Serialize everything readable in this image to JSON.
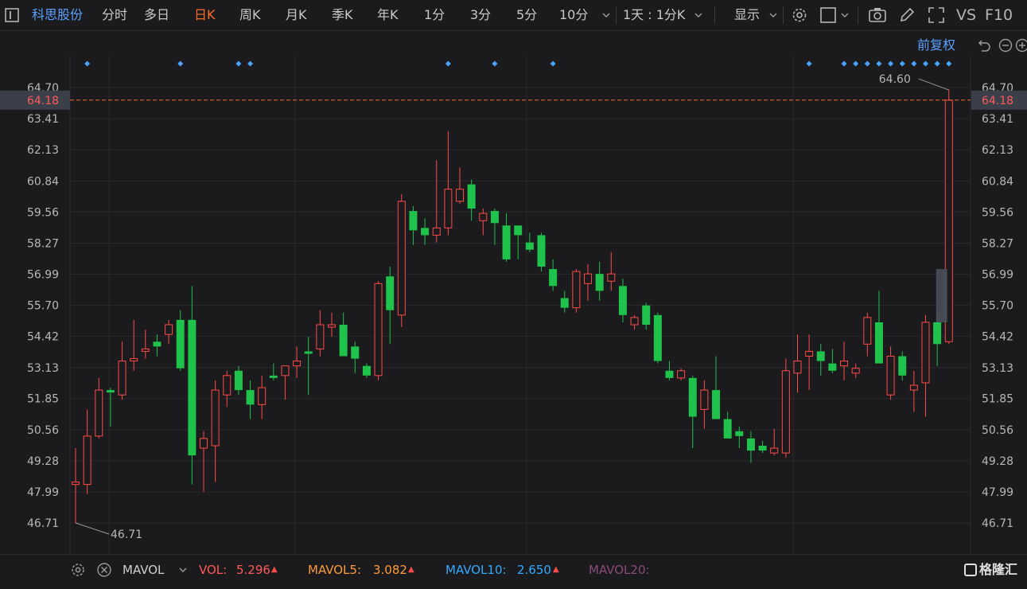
{
  "toolbar": {
    "stock_name": "科思股份",
    "tabs": [
      "分时",
      "多日",
      "日K",
      "周K",
      "月K",
      "季K",
      "年K",
      "1分",
      "3分",
      "5分",
      "10分"
    ],
    "active_tab": "日K",
    "interval_label": "1天 : 1分K",
    "display_label": "显示",
    "vs_label": "VS",
    "f10_label": "F10"
  },
  "subbar": {
    "adjust_label": "前复权"
  },
  "chart_data": {
    "type": "candlestick",
    "y_ticks": [
      "64.70",
      "63.41",
      "62.13",
      "60.84",
      "59.56",
      "58.27",
      "56.99",
      "55.70",
      "54.42",
      "53.13",
      "51.85",
      "50.56",
      "49.28",
      "47.99",
      "46.71"
    ],
    "ylim": [
      46.71,
      64.7
    ],
    "current_price": "64.18",
    "high_label": "64.60",
    "low_label": "46.71",
    "colors": {
      "up": "#ff4a4a",
      "down": "#1fc24a",
      "current_line": "#ff6a2a",
      "marker": "#4aa3ff"
    },
    "candles": [
      {
        "o": 48.3,
        "h": 49.8,
        "l": 46.71,
        "c": 48.4
      },
      {
        "o": 48.3,
        "h": 51.4,
        "l": 47.9,
        "c": 50.3
      },
      {
        "o": 50.3,
        "h": 52.7,
        "l": 50.2,
        "c": 52.2
      },
      {
        "o": 52.2,
        "h": 52.3,
        "l": 50.7,
        "c": 52.1
      },
      {
        "o": 52.0,
        "h": 54.2,
        "l": 51.8,
        "c": 53.4
      },
      {
        "o": 53.4,
        "h": 55.1,
        "l": 53.0,
        "c": 53.5
      },
      {
        "o": 53.8,
        "h": 54.7,
        "l": 53.5,
        "c": 53.9
      },
      {
        "o": 54.2,
        "h": 54.5,
        "l": 53.6,
        "c": 54.0
      },
      {
        "o": 54.5,
        "h": 55.1,
        "l": 54.1,
        "c": 54.9
      },
      {
        "o": 55.1,
        "h": 55.5,
        "l": 53.0,
        "c": 53.1
      },
      {
        "o": 55.1,
        "h": 56.5,
        "l": 48.3,
        "c": 49.5
      },
      {
        "o": 49.8,
        "h": 50.5,
        "l": 48.0,
        "c": 50.2
      },
      {
        "o": 49.9,
        "h": 52.6,
        "l": 48.4,
        "c": 52.2
      },
      {
        "o": 52.0,
        "h": 53.0,
        "l": 51.5,
        "c": 52.8
      },
      {
        "o": 53.0,
        "h": 53.2,
        "l": 52.0,
        "c": 52.2
      },
      {
        "o": 52.2,
        "h": 52.6,
        "l": 51.0,
        "c": 51.6
      },
      {
        "o": 51.6,
        "h": 52.8,
        "l": 51.0,
        "c": 52.3
      },
      {
        "o": 52.8,
        "h": 53.3,
        "l": 52.6,
        "c": 52.7
      },
      {
        "o": 52.8,
        "h": 53.2,
        "l": 51.8,
        "c": 53.2
      },
      {
        "o": 53.2,
        "h": 54.0,
        "l": 52.7,
        "c": 53.4
      },
      {
        "o": 53.8,
        "h": 54.4,
        "l": 52.0,
        "c": 53.7
      },
      {
        "o": 53.9,
        "h": 55.5,
        "l": 53.6,
        "c": 54.9
      },
      {
        "o": 54.8,
        "h": 55.4,
        "l": 54.4,
        "c": 54.9
      },
      {
        "o": 54.9,
        "h": 55.4,
        "l": 53.6,
        "c": 53.6
      },
      {
        "o": 54.0,
        "h": 54.2,
        "l": 52.9,
        "c": 53.5
      },
      {
        "o": 53.2,
        "h": 53.3,
        "l": 52.7,
        "c": 52.8
      },
      {
        "o": 52.8,
        "h": 56.7,
        "l": 52.6,
        "c": 56.6
      },
      {
        "o": 56.9,
        "h": 57.3,
        "l": 54.1,
        "c": 55.5
      },
      {
        "o": 55.3,
        "h": 60.3,
        "l": 54.8,
        "c": 60.0
      },
      {
        "o": 59.6,
        "h": 59.8,
        "l": 58.2,
        "c": 58.8
      },
      {
        "o": 58.9,
        "h": 59.3,
        "l": 58.2,
        "c": 58.6
      },
      {
        "o": 58.6,
        "h": 61.7,
        "l": 58.3,
        "c": 58.9
      },
      {
        "o": 58.9,
        "h": 62.9,
        "l": 58.6,
        "c": 60.5
      },
      {
        "o": 60.0,
        "h": 61.4,
        "l": 59.9,
        "c": 60.5
      },
      {
        "o": 60.7,
        "h": 60.9,
        "l": 59.2,
        "c": 59.7
      },
      {
        "o": 59.2,
        "h": 59.7,
        "l": 58.6,
        "c": 59.5
      },
      {
        "o": 59.6,
        "h": 59.7,
        "l": 58.2,
        "c": 59.1
      },
      {
        "o": 59.0,
        "h": 59.5,
        "l": 57.5,
        "c": 57.6
      },
      {
        "o": 59.0,
        "h": 59.0,
        "l": 57.6,
        "c": 58.6
      },
      {
        "o": 58.3,
        "h": 58.7,
        "l": 57.9,
        "c": 58.0
      },
      {
        "o": 58.6,
        "h": 58.7,
        "l": 57.1,
        "c": 57.3
      },
      {
        "o": 57.2,
        "h": 57.6,
        "l": 56.3,
        "c": 56.5
      },
      {
        "o": 56.0,
        "h": 56.3,
        "l": 55.4,
        "c": 55.6
      },
      {
        "o": 55.6,
        "h": 57.2,
        "l": 55.4,
        "c": 57.1
      },
      {
        "o": 56.6,
        "h": 57.4,
        "l": 55.9,
        "c": 57.0
      },
      {
        "o": 57.0,
        "h": 57.5,
        "l": 55.9,
        "c": 56.3
      },
      {
        "o": 56.7,
        "h": 57.9,
        "l": 56.3,
        "c": 57.0
      },
      {
        "o": 56.5,
        "h": 56.8,
        "l": 55.0,
        "c": 55.3
      },
      {
        "o": 54.9,
        "h": 55.3,
        "l": 54.7,
        "c": 55.2
      },
      {
        "o": 55.7,
        "h": 55.8,
        "l": 54.7,
        "c": 54.9
      },
      {
        "o": 55.3,
        "h": 55.4,
        "l": 53.3,
        "c": 53.4
      },
      {
        "o": 53.0,
        "h": 53.4,
        "l": 52.6,
        "c": 52.7
      },
      {
        "o": 52.7,
        "h": 53.1,
        "l": 52.6,
        "c": 53.0
      },
      {
        "o": 52.7,
        "h": 52.8,
        "l": 49.8,
        "c": 51.1
      },
      {
        "o": 51.4,
        "h": 52.6,
        "l": 50.6,
        "c": 52.2
      },
      {
        "o": 52.2,
        "h": 53.6,
        "l": 51.0,
        "c": 51.0
      },
      {
        "o": 51.0,
        "h": 51.3,
        "l": 50.2,
        "c": 50.2
      },
      {
        "o": 50.5,
        "h": 50.7,
        "l": 49.8,
        "c": 50.3
      },
      {
        "o": 50.2,
        "h": 50.5,
        "l": 49.2,
        "c": 49.7
      },
      {
        "o": 49.9,
        "h": 50.1,
        "l": 49.6,
        "c": 49.7
      },
      {
        "o": 49.6,
        "h": 50.6,
        "l": 49.5,
        "c": 49.8
      },
      {
        "o": 49.6,
        "h": 53.5,
        "l": 49.4,
        "c": 53.0
      },
      {
        "o": 52.9,
        "h": 54.5,
        "l": 52.1,
        "c": 53.4
      },
      {
        "o": 53.6,
        "h": 54.5,
        "l": 52.2,
        "c": 53.8
      },
      {
        "o": 53.8,
        "h": 54.1,
        "l": 52.8,
        "c": 53.4
      },
      {
        "o": 53.3,
        "h": 53.9,
        "l": 52.9,
        "c": 53.0
      },
      {
        "o": 53.2,
        "h": 54.2,
        "l": 52.6,
        "c": 53.4
      },
      {
        "o": 52.9,
        "h": 53.3,
        "l": 52.7,
        "c": 53.1
      },
      {
        "o": 54.1,
        "h": 55.4,
        "l": 53.6,
        "c": 55.2
      },
      {
        "o": 55.0,
        "h": 56.3,
        "l": 53.3,
        "c": 53.3
      },
      {
        "o": 52.0,
        "h": 54.0,
        "l": 51.8,
        "c": 53.6
      },
      {
        "o": 53.6,
        "h": 53.8,
        "l": 52.6,
        "c": 52.8
      },
      {
        "o": 52.2,
        "h": 53.0,
        "l": 51.3,
        "c": 52.4
      },
      {
        "o": 52.5,
        "h": 55.3,
        "l": 51.1,
        "c": 55.0
      },
      {
        "o": 55.0,
        "h": 55.3,
        "l": 53.2,
        "c": 54.1
      },
      {
        "o": 54.2,
        "h": 64.6,
        "l": 54.1,
        "c": 64.18
      }
    ],
    "markers": [
      1,
      9,
      14,
      15,
      32,
      36,
      41,
      63,
      66,
      67,
      68,
      69,
      70,
      71,
      72,
      73,
      74,
      75
    ]
  },
  "volume_bar": {
    "settings_icon": "gear-icon",
    "close_icon": "close-icon",
    "indicator_label": "MAVOL",
    "vol_label": "VOL:",
    "vol_value": "5.296",
    "mavol5_label": "MAVOL5:",
    "mavol5_value": "3.082",
    "mavol10_label": "MAVOL10:",
    "mavol10_value": "2.650",
    "mavol20_label": "MAVOL20:",
    "watermark": "格隆汇"
  }
}
